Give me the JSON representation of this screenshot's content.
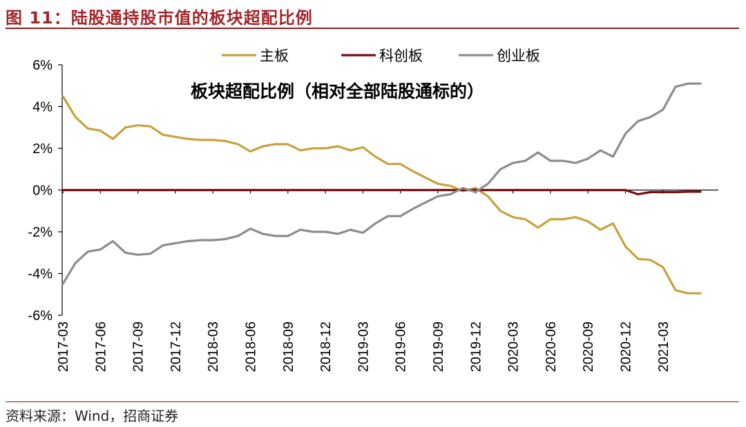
{
  "header": {
    "title": "图 11：陆股通持股市值的板块超配比例"
  },
  "footer": {
    "source": "资料来源：Wind，招商证券"
  },
  "chart_data": {
    "type": "line",
    "annotation": "板块超配比例（相对全部陆股通标的）",
    "ylim": [
      -6,
      6
    ],
    "y_ticks": [
      6,
      4,
      2,
      0,
      -2,
      -4,
      -6
    ],
    "y_tick_labels": [
      "6%",
      "4%",
      "2%",
      "0%",
      "-2%",
      "-4%",
      "-6%"
    ],
    "x_tick_labels": [
      "2017-03",
      "2017-06",
      "2017-09",
      "2017-12",
      "2018-03",
      "2018-06",
      "2018-09",
      "2018-12",
      "2019-03",
      "2019-06",
      "2019-09",
      "2019-12",
      "2020-03",
      "2020-06",
      "2020-09",
      "2020-12",
      "2021-03"
    ],
    "x_tick_index": [
      0,
      3,
      6,
      9,
      12,
      15,
      18,
      21,
      24,
      27,
      30,
      33,
      36,
      39,
      42,
      45,
      48
    ],
    "legend_position": "top-center",
    "x": [
      "2017-03",
      "2017-04",
      "2017-05",
      "2017-06",
      "2017-07",
      "2017-08",
      "2017-09",
      "2017-10",
      "2017-11",
      "2017-12",
      "2018-01",
      "2018-02",
      "2018-03",
      "2018-04",
      "2018-05",
      "2018-06",
      "2018-07",
      "2018-08",
      "2018-09",
      "2018-10",
      "2018-11",
      "2018-12",
      "2019-01",
      "2019-02",
      "2019-03",
      "2019-04",
      "2019-05",
      "2019-06",
      "2019-07",
      "2019-08",
      "2019-09",
      "2019-10",
      "2019-11",
      "2019-12",
      "2020-01",
      "2020-02",
      "2020-03",
      "2020-04",
      "2020-05",
      "2020-06",
      "2020-07",
      "2020-08",
      "2020-09",
      "2020-10",
      "2020-11",
      "2020-12",
      "2021-01",
      "2021-02",
      "2021-03",
      "2021-04",
      "2021-05",
      "2021-06"
    ],
    "series": [
      {
        "name": "主板",
        "color": "#C9A13C",
        "values": [
          4.5,
          3.5,
          2.95,
          2.85,
          2.45,
          3.0,
          3.1,
          3.05,
          2.65,
          2.55,
          2.45,
          2.4,
          2.4,
          2.35,
          2.2,
          1.85,
          2.1,
          2.2,
          2.2,
          1.9,
          2.0,
          2.0,
          2.1,
          1.9,
          2.05,
          1.6,
          1.25,
          1.25,
          0.9,
          0.6,
          0.3,
          0.2,
          -0.05,
          0.1,
          -0.3,
          -1.0,
          -1.3,
          -1.4,
          -1.8,
          -1.4,
          -1.4,
          -1.3,
          -1.5,
          -1.9,
          -1.6,
          -2.7,
          -3.3,
          -3.35,
          -3.7,
          -4.8,
          -4.95,
          -4.95
        ]
      },
      {
        "name": "科创板",
        "color": "#7A0B11",
        "values": [
          0,
          0,
          0,
          0,
          0,
          0,
          0,
          0,
          0,
          0,
          0,
          0,
          0,
          0,
          0,
          0,
          0,
          0,
          0,
          0,
          0,
          0,
          0,
          0,
          0,
          0,
          0,
          0,
          0,
          0,
          0,
          0,
          0,
          0,
          0,
          0,
          0,
          0,
          0,
          0,
          0,
          0,
          0,
          0,
          0,
          0,
          -0.2,
          -0.1,
          -0.1,
          -0.1,
          -0.08,
          -0.08
        ]
      },
      {
        "name": "创业板",
        "color": "#8C8C8C",
        "values": [
          -4.5,
          -3.5,
          -2.95,
          -2.85,
          -2.45,
          -3.0,
          -3.1,
          -3.05,
          -2.65,
          -2.55,
          -2.45,
          -2.4,
          -2.4,
          -2.35,
          -2.2,
          -1.85,
          -2.1,
          -2.2,
          -2.2,
          -1.9,
          -2.0,
          -2.0,
          -2.1,
          -1.9,
          -2.05,
          -1.6,
          -1.25,
          -1.25,
          -0.9,
          -0.6,
          -0.3,
          -0.2,
          0.1,
          -0.1,
          0.3,
          1.0,
          1.3,
          1.4,
          1.8,
          1.4,
          1.4,
          1.3,
          1.5,
          1.9,
          1.6,
          2.7,
          3.3,
          3.5,
          3.85,
          4.95,
          5.1,
          5.1
        ]
      }
    ]
  }
}
